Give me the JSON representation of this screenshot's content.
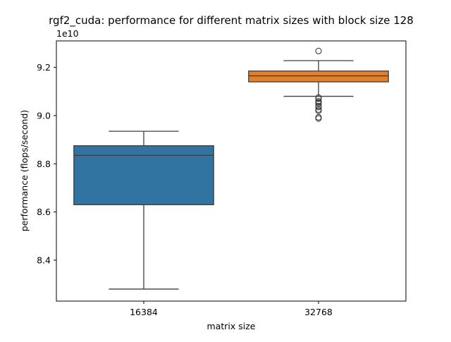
{
  "chart_data": {
    "type": "boxplot",
    "title": "rgf2_cuda: performance for different matrix sizes with block size 128",
    "xlabel": "matrix size",
    "ylabel": "performance (flops/second)",
    "y_offset_label": "1e10",
    "y_multiplier": 10000000000,
    "ylim": [
      8.23,
      9.31
    ],
    "yticks": [
      8.4,
      8.6,
      8.8,
      9.0,
      9.2
    ],
    "ytick_labels": [
      "8.4",
      "8.6",
      "8.8",
      "9.0",
      "9.2"
    ],
    "categories": [
      "16384",
      "32768"
    ],
    "grid": false,
    "legend": "none",
    "boxes": [
      {
        "category": "16384",
        "color": "#3274a1",
        "whisker_low": 8.28,
        "q1": 8.63,
        "median": 8.835,
        "q3": 8.875,
        "whisker_high": 8.935,
        "outliers": []
      },
      {
        "category": "32768",
        "color": "#e1812c",
        "whisker_low": 9.08,
        "q1": 9.14,
        "median": 9.165,
        "q3": 9.185,
        "whisker_high": 9.228,
        "outliers": [
          9.268,
          9.075,
          9.07,
          9.06,
          9.055,
          9.05,
          9.04,
          9.035,
          9.025,
          9.02,
          8.993,
          8.988
        ]
      }
    ]
  }
}
